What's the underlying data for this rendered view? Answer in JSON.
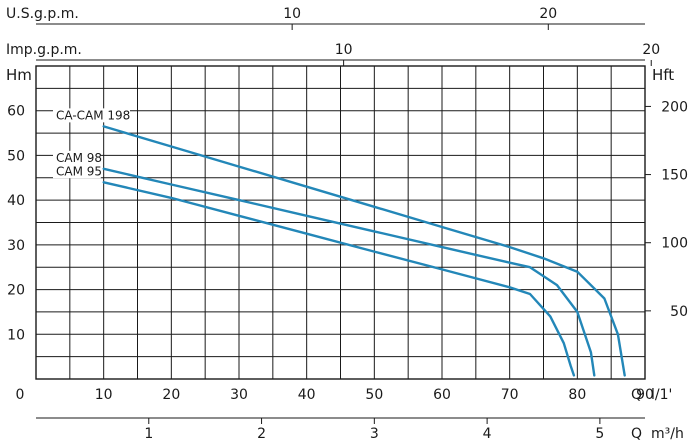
{
  "chart_data": {
    "type": "line",
    "x_axis_primary": {
      "label": "Q",
      "unit": "l/1'",
      "range": [
        0,
        90
      ],
      "ticks": [
        "0",
        "10",
        "20",
        "30",
        "40",
        "50",
        "60",
        "70",
        "80",
        "90"
      ]
    },
    "x_axis_m3h": {
      "label": "Q",
      "unit": "m³/h",
      "ticks": [
        {
          "value": 1,
          "label": "1"
        },
        {
          "value": 2,
          "label": "2"
        },
        {
          "value": 3,
          "label": "3"
        },
        {
          "value": 4,
          "label": "4"
        },
        {
          "value": 5,
          "label": "5"
        }
      ]
    },
    "x_axis_usgpm": {
      "label": "U.S.g.p.m.",
      "ticks": [
        {
          "value": 10,
          "label": "10"
        },
        {
          "value": 20,
          "label": "20"
        }
      ]
    },
    "x_axis_impgpm": {
      "label": "Imp.g.p.m.",
      "ticks": [
        {
          "value": 10,
          "label": "10"
        },
        {
          "value": 20,
          "label": "20"
        }
      ]
    },
    "y_axis_left": {
      "label": "Hm",
      "range": [
        0,
        70
      ],
      "ticks": [
        "10",
        "20",
        "30",
        "40",
        "50",
        "60"
      ]
    },
    "y_axis_right": {
      "label": "Hft",
      "ticks": [
        {
          "value": 50,
          "label": "50"
        },
        {
          "value": 100,
          "label": "100"
        },
        {
          "value": 150,
          "label": "150"
        },
        {
          "value": 200,
          "label": "200"
        }
      ]
    },
    "grid": true,
    "series": [
      {
        "name": "CA-CAM 198",
        "color": "#2387b8",
        "x": [
          10,
          20,
          30,
          40,
          50,
          60,
          70,
          75,
          80,
          84,
          86,
          87
        ],
        "y": [
          56.5,
          52,
          47.5,
          43,
          38.5,
          34,
          29.5,
          27,
          24,
          18,
          10,
          0.8
        ]
      },
      {
        "name": "CAM 98",
        "color": "#2387b8",
        "x": [
          10,
          20,
          30,
          40,
          50,
          60,
          70,
          73,
          77,
          80,
          82,
          82.5
        ],
        "y": [
          47,
          43.5,
          40,
          36.5,
          33,
          29.5,
          26,
          25,
          21,
          15,
          6,
          0.8
        ]
      },
      {
        "name": "CAM 95",
        "color": "#2387b8",
        "x": [
          10,
          20,
          30,
          40,
          50,
          60,
          70,
          73,
          76,
          78,
          79,
          79.5
        ],
        "y": [
          44,
          40.5,
          36.5,
          32.5,
          28.5,
          24.5,
          20.5,
          19,
          14,
          8,
          3,
          0.8
        ]
      }
    ]
  }
}
